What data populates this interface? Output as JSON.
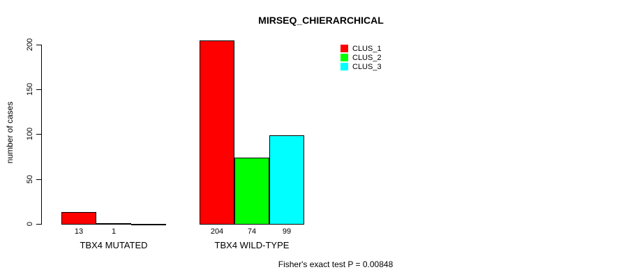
{
  "page": {
    "background_color": "#ffffff",
    "text_color": "#000000"
  },
  "chart_data": {
    "type": "bar",
    "title": "MIRSEQ_CHIERARCHICAL",
    "xlabel": "",
    "ylabel": "number of cases",
    "categories": [
      "TBX4 MUTATED",
      "TBX4 WILD-TYPE"
    ],
    "series": [
      {
        "name": "CLUS_1",
        "color": "#ff0000",
        "values": [
          13,
          204
        ]
      },
      {
        "name": "CLUS_2",
        "color": "#00ff00",
        "values": [
          1,
          74
        ]
      },
      {
        "name": "CLUS_3",
        "color": "#00ffff",
        "values": [
          0,
          99
        ]
      }
    ],
    "bar_value_labels": [
      [
        "13",
        "1",
        ""
      ],
      [
        "204",
        "74",
        "99"
      ]
    ],
    "yticks": [
      0,
      50,
      100,
      150,
      200
    ],
    "ylim": [
      0,
      210
    ],
    "grid": false,
    "bar_border_color": "#000000",
    "legend_position": "top-right",
    "annotation": "Fisher's exact test P = 0.00848"
  }
}
